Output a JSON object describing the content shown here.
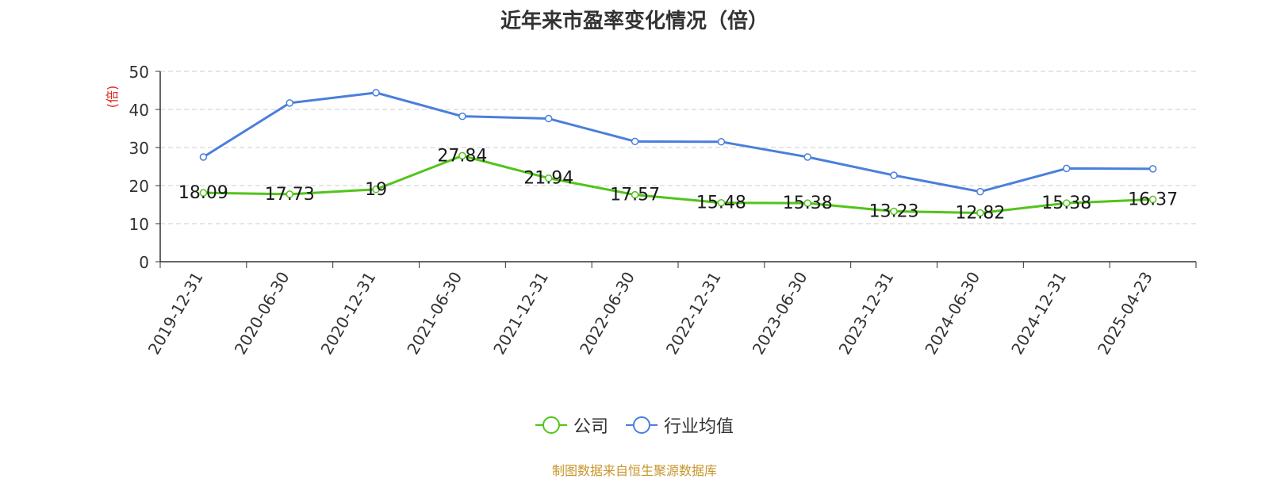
{
  "chart_data": {
    "type": "line",
    "title": "近年来市盈率变化情况（倍）",
    "ylabel": "(倍)",
    "xlabel": "",
    "ylim": [
      0,
      50
    ],
    "yticks": [
      0,
      10,
      20,
      30,
      40,
      50
    ],
    "grid": true,
    "legend_position": "bottom-center",
    "categories": [
      "2019-12-31",
      "2020-06-30",
      "2020-12-31",
      "2021-06-30",
      "2021-12-31",
      "2022-06-30",
      "2022-12-31",
      "2023-06-30",
      "2023-12-31",
      "2024-06-30",
      "2024-12-31",
      "2025-04-23"
    ],
    "series": [
      {
        "name": "公司",
        "color": "#52c41a",
        "show_labels": true,
        "values": [
          18.09,
          17.73,
          19,
          27.84,
          21.94,
          17.57,
          15.48,
          15.38,
          13.23,
          12.82,
          15.38,
          16.37
        ],
        "labels": [
          "18.09",
          "17.73",
          "19",
          "27.84",
          "21.94",
          "17.57",
          "15.48",
          "15.38",
          "13.23",
          "12.82",
          "15.38",
          "16.37"
        ]
      },
      {
        "name": "行业均值",
        "color": "#4a7fdc",
        "show_labels": false,
        "values": [
          27.5,
          41.7,
          44.4,
          38.2,
          37.6,
          31.6,
          31.5,
          27.5,
          22.7,
          18.4,
          24.5,
          24.4
        ]
      }
    ]
  },
  "source_note": "制图数据来自恒生聚源数据库"
}
